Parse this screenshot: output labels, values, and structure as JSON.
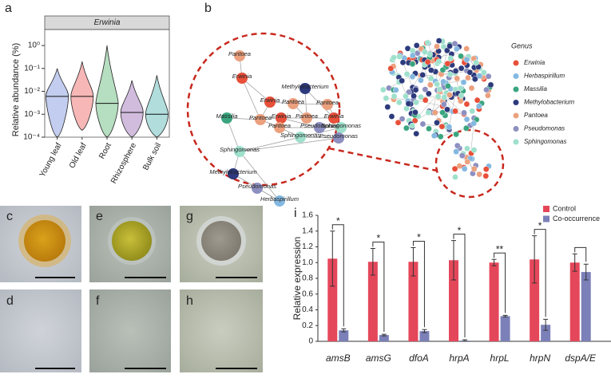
{
  "panel_labels": [
    "a",
    "b",
    "c",
    "d",
    "e",
    "f",
    "g",
    "h",
    "i"
  ],
  "chart_data": [
    {
      "type": "violin",
      "title": "Erwinia",
      "ylabel": "Relative abundance (%)",
      "categories": [
        "Young leaf",
        "Old leaf",
        "Root",
        "Rhizosphere",
        "Bulk soil"
      ],
      "colors": [
        "#4f6fd0",
        "#e83030",
        "#2ea04a",
        "#7b3fa0",
        "#1f9e9e"
      ],
      "min": [
        0.0001,
        0.0002,
        0.0001,
        0.0001,
        0.0001
      ],
      "median": [
        0.006,
        0.006,
        0.003,
        0.0012,
        0.001
      ],
      "max": [
        0.1,
        0.2,
        1,
        0.03,
        0.05
      ],
      "log": true,
      "ylim": [
        0.0001,
        5
      ],
      "yticks": [
        {
          "value": 1,
          "label": "10⁰"
        },
        {
          "value": 0.1,
          "label": "10⁻¹"
        },
        {
          "value": 0.01,
          "label": "10⁻²"
        },
        {
          "value": 0.001,
          "label": "10⁻³"
        },
        {
          "value": 0.0001,
          "label": "10⁻⁴"
        }
      ]
    },
    {
      "type": "bar",
      "ylabel": "Relative expression",
      "categories": [
        "amsB",
        "amsG",
        "dfoA",
        "hrpA",
        "hrpL",
        "hrpN",
        "dspA/E"
      ],
      "series": [
        {
          "name": "Control",
          "color": "#e5475a",
          "values": [
            1.05,
            1.01,
            1.01,
            1.03,
            1.0,
            1.04,
            1.0
          ],
          "errors": [
            0.35,
            0.17,
            0.18,
            0.25,
            0.04,
            0.3,
            0.11
          ]
        },
        {
          "name": "Co-occurrence",
          "color": "#7b80b8",
          "values": [
            0.14,
            0.08,
            0.13,
            0.01,
            0.32,
            0.21,
            0.88
          ],
          "errors": [
            0.02,
            0.01,
            0.02,
            0.01,
            0.01,
            0.07,
            0.1
          ]
        }
      ],
      "significance": [
        "*",
        "*",
        "*",
        "*",
        "**",
        "*",
        null
      ],
      "ylim": [
        0,
        1.6
      ],
      "yticks": [
        0,
        0.2,
        0.4,
        0.6,
        0.8,
        {
          "value": 1,
          "label": "1.0"
        },
        1.2,
        1.4,
        1.6
      ],
      "legend": "top-right"
    }
  ],
  "network": {
    "legend_title": "Genus",
    "genera": [
      {
        "name": "Erwinia",
        "color": "#e8503a"
      },
      {
        "name": "Herbaspirillum",
        "color": "#84b8e0"
      },
      {
        "name": "Massilia",
        "color": "#3aa57f"
      },
      {
        "name": "Methylobacterium",
        "color": "#2d3a7c"
      },
      {
        "name": "Pantoea",
        "color": "#eba07e"
      },
      {
        "name": "Pseudomonas",
        "color": "#8c8fc0"
      },
      {
        "name": "Sphingomonas",
        "color": "#9ee0cc"
      }
    ],
    "node_labels": [
      "Pantoea",
      "Erwinia",
      "Methylobacterium",
      "Erwinia",
      "Pantoea",
      "Pantoea",
      "Massilia",
      "Pantoea",
      "Erwinia",
      "Pantoea",
      "Erwinia",
      "Pantoea",
      "Pseudomonas",
      "Sphingomonas",
      "Sphingomonas",
      "Pseudomonas",
      "Sphingomonas",
      "Methylobacterium",
      "Pseudomonas",
      "Herbaspirillum"
    ]
  }
}
